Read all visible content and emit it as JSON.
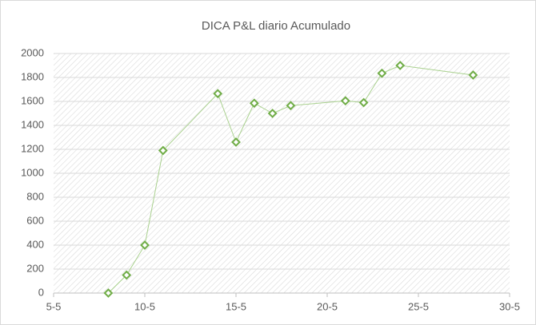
{
  "chart_data": {
    "type": "line",
    "title": "DICA P&L diario Acumulado",
    "x": [
      8,
      9,
      10,
      11,
      14,
      15,
      16,
      17,
      18,
      21,
      22,
      23,
      24,
      28
    ],
    "series": [
      {
        "name": "P&L",
        "color": "#70ad47",
        "line_color": "#a9d18e",
        "values": [
          0,
          150,
          400,
          1190,
          1665,
          1260,
          1585,
          1500,
          1565,
          1605,
          1590,
          1835,
          1900,
          1820
        ]
      }
    ],
    "xlim": [
      5,
      30
    ],
    "xticks": [
      {
        "value": 5,
        "label": "5-5"
      },
      {
        "value": 10,
        "label": "10-5"
      },
      {
        "value": 15,
        "label": "15-5"
      },
      {
        "value": 20,
        "label": "20-5"
      },
      {
        "value": 25,
        "label": "25-5"
      },
      {
        "value": 30,
        "label": "30-5"
      }
    ],
    "ylim": [
      0,
      2000
    ],
    "yticks": [
      0,
      200,
      400,
      600,
      800,
      1000,
      1200,
      1400,
      1600,
      1800,
      2000
    ],
    "grid": true
  }
}
